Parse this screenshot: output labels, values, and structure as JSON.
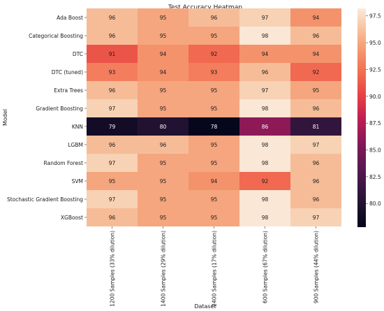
{
  "chart_data": {
    "type": "heatmap",
    "title": "Test Accuracy Heatmap",
    "xlabel": "Dataset",
    "ylabel": "Model",
    "rows": [
      "Ada Boost",
      "Categorical Boosting",
      "DTC",
      "DTC (tuned)",
      "Extra Trees",
      "Gradient Boosting",
      "KNN",
      "LGBM",
      "Random Forest",
      "SVM",
      "Stochastic Gradient Boosting",
      "XGBoost"
    ],
    "columns": [
      "1200 Samples (33% dilution)",
      "1400 Samples (29% dilution)",
      "2400 Samples (17% dilution)",
      "600 Samples (67% dilution)",
      "900 Samples (44% dilution)"
    ],
    "values": [
      [
        96,
        95,
        96,
        97,
        94
      ],
      [
        96,
        95,
        95,
        98,
        96
      ],
      [
        91,
        94,
        92,
        94,
        94
      ],
      [
        93,
        94,
        93,
        96,
        92
      ],
      [
        96,
        95,
        95,
        97,
        95
      ],
      [
        97,
        95,
        95,
        98,
        96
      ],
      [
        79,
        80,
        78,
        86,
        81
      ],
      [
        96,
        96,
        95,
        98,
        97
      ],
      [
        97,
        95,
        95,
        98,
        96
      ],
      [
        95,
        95,
        94,
        92,
        96
      ],
      [
        97,
        95,
        95,
        98,
        96
      ],
      [
        96,
        95,
        95,
        98,
        97
      ]
    ],
    "colorbar": {
      "range": [
        77.8,
        98.2
      ],
      "ticks": [
        "97.5",
        "95.0",
        "92.5",
        "90.0",
        "87.5",
        "85.0",
        "82.5",
        "80.0"
      ],
      "colormap": "rocket"
    },
    "legend": "colorbar-right"
  }
}
